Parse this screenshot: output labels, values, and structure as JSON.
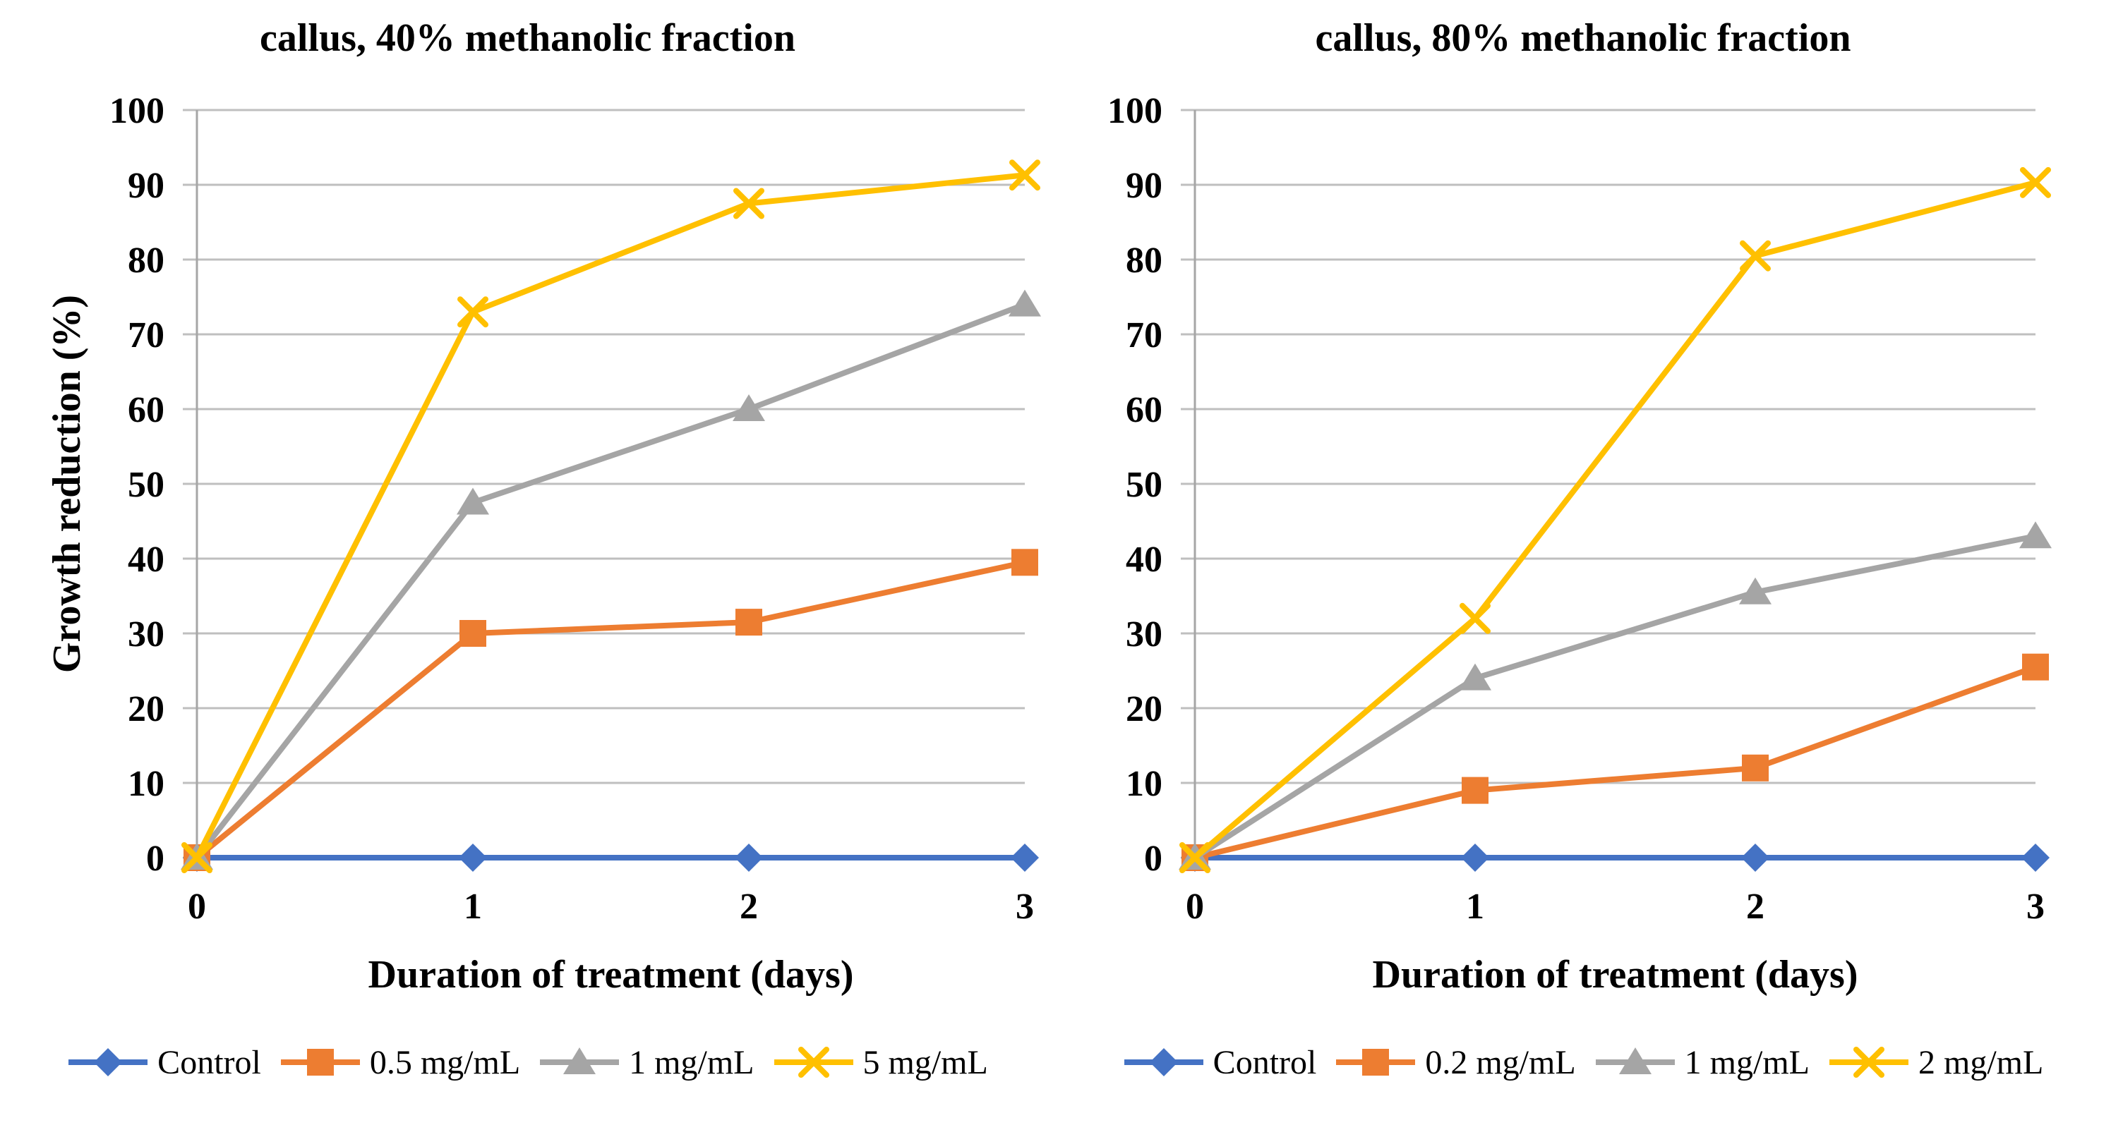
{
  "style": {
    "background": "#FFFFFF",
    "grid_color": "#BFBFBF",
    "axis_color": "#A6A6A6",
    "text_color": "#000000"
  },
  "chart_data": [
    {
      "type": "line",
      "title": "callus, 40% methanolic fraction",
      "xlabel": "Duration of treatment (days)",
      "ylabel": "Growth reduction (%)",
      "x": [
        0,
        1,
        2,
        3
      ],
      "xlim": [
        0,
        3
      ],
      "ylim": [
        0,
        100
      ],
      "y_ticks": [
        0,
        10,
        20,
        30,
        40,
        50,
        60,
        70,
        80,
        90,
        100
      ],
      "grid": true,
      "legend_position": "bottom",
      "series": [
        {
          "name": "Control",
          "color": "#4472C4",
          "marker": "diamond",
          "values": [
            0,
            0,
            0,
            0
          ]
        },
        {
          "name": "0.5 mg/mL",
          "color": "#ED7D31",
          "marker": "square",
          "values": [
            0,
            30,
            31.5,
            39.5
          ]
        },
        {
          "name": "1 mg/mL",
          "color": "#A5A5A5",
          "marker": "triangle",
          "values": [
            0,
            47.5,
            60,
            74
          ]
        },
        {
          "name": "5 mg/mL",
          "color": "#FFC000",
          "marker": "x",
          "values": [
            0,
            73,
            87.5,
            91.3
          ]
        }
      ]
    },
    {
      "type": "line",
      "title": "callus, 80% methanolic fraction",
      "xlabel": "Duration of treatment (days)",
      "x": [
        0,
        1,
        2,
        3
      ],
      "xlim": [
        0,
        3
      ],
      "ylim": [
        0,
        100
      ],
      "y_ticks": [
        0,
        10,
        20,
        30,
        40,
        50,
        60,
        70,
        80,
        90,
        100
      ],
      "grid": true,
      "legend_position": "bottom",
      "series": [
        {
          "name": "Control",
          "color": "#4472C4",
          "marker": "diamond",
          "values": [
            0,
            0,
            0,
            0
          ]
        },
        {
          "name": "0.2 mg/mL",
          "color": "#ED7D31",
          "marker": "square",
          "values": [
            0,
            9,
            12,
            25.5
          ]
        },
        {
          "name": "1 mg/mL",
          "color": "#A5A5A5",
          "marker": "triangle",
          "values": [
            0,
            24,
            35.5,
            43
          ]
        },
        {
          "name": "2 mg/mL",
          "color": "#FFC000",
          "marker": "x",
          "values": [
            0,
            32,
            80.5,
            90.3
          ]
        }
      ]
    }
  ]
}
